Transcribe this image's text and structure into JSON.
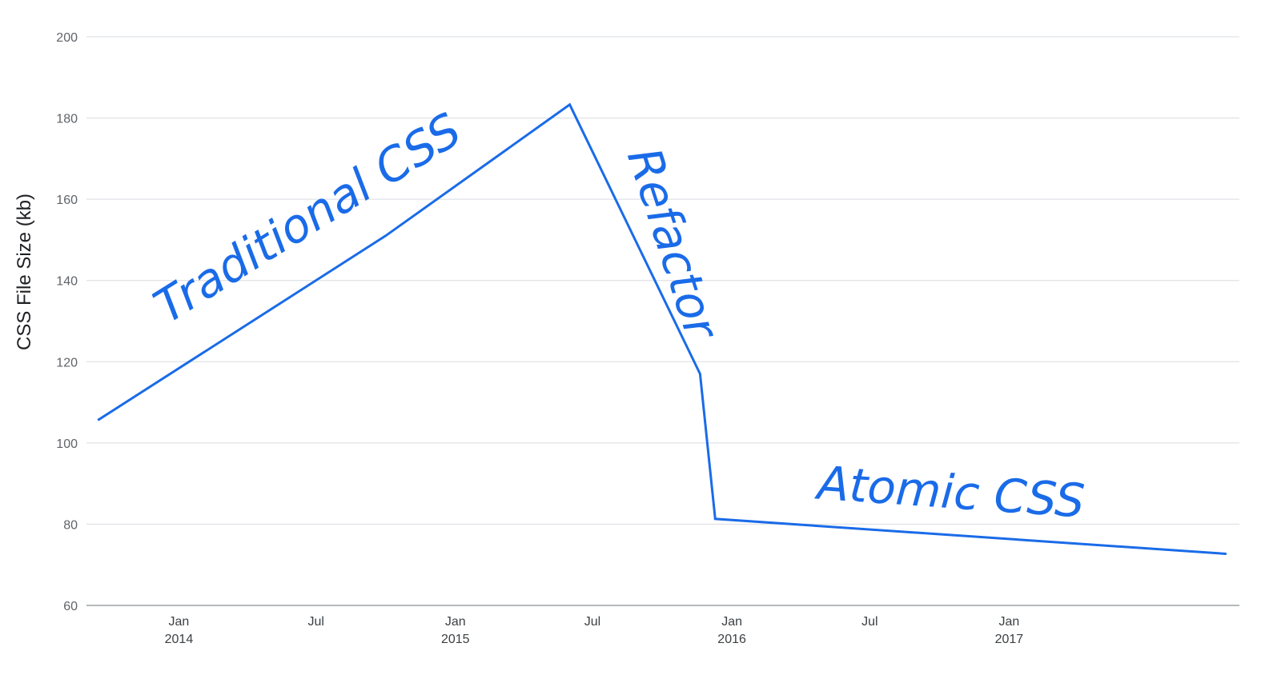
{
  "chart_data": {
    "type": "line",
    "ylabel": "CSS File Size (kb)",
    "xlabel": "",
    "title": "",
    "ylim": [
      60,
      200
    ],
    "yticks": [
      60,
      80,
      100,
      120,
      140,
      160,
      180,
      200
    ],
    "xlim": [
      "2013-09-01",
      "2017-11-01"
    ],
    "xticks": [
      {
        "date": "2014-01-01",
        "label": "Jan",
        "year": "2014"
      },
      {
        "date": "2014-07-01",
        "label": "Jul",
        "year": ""
      },
      {
        "date": "2015-01-01",
        "label": "Jan",
        "year": "2015"
      },
      {
        "date": "2015-07-01",
        "label": "Jul",
        "year": ""
      },
      {
        "date": "2016-01-01",
        "label": "Jan",
        "year": "2016"
      },
      {
        "date": "2016-07-01",
        "label": "Jul",
        "year": ""
      },
      {
        "date": "2017-01-01",
        "label": "Jan",
        "year": "2017"
      }
    ],
    "grid": true,
    "line_color": "#1a6be8",
    "series": [
      {
        "points": [
          {
            "x": "2013-09-16",
            "y": 105.6
          },
          {
            "x": "2014-10-01",
            "y": 151.0
          },
          {
            "x": "2015-06-01",
            "y": 183.3
          },
          {
            "x": "2015-11-20",
            "y": 117.0
          },
          {
            "x": "2015-12-10",
            "y": 81.3
          },
          {
            "x": "2017-10-15",
            "y": 72.7
          }
        ]
      }
    ],
    "annotations": [
      {
        "text": "Traditional CSS",
        "x": "2014-07-01",
        "y": 152,
        "rotate": -32
      },
      {
        "text": "Refactor",
        "x": "2015-09-25",
        "y": 148,
        "rotate": 72
      },
      {
        "text": "Atomic CSS",
        "x": "2016-10-15",
        "y": 84,
        "rotate": 4
      }
    ]
  }
}
